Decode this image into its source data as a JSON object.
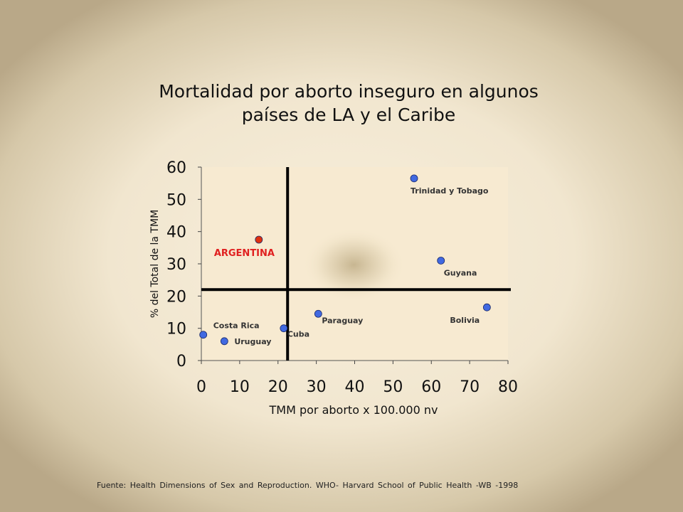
{
  "title_line1": "Mortalidad por aborto inseguro en algunos",
  "title_line2": "países de LA y el Caribe",
  "footer": "Fuente: Health Dimensions of Sex and Reproduction. WHO- Harvard School of Public Health -WB -1998",
  "colors": {
    "point": "#4169e1",
    "highlight": "#e03010",
    "highlight_label": "#e02020",
    "label": "#333333",
    "plot_bg": "#f7ead1"
  },
  "chart_data": {
    "type": "scatter",
    "title": "Mortalidad por aborto inseguro en algunos países de LA y el Caribe",
    "xlabel": "TMM por aborto x 100.000 nv",
    "ylabel": "% del Total de la TMM",
    "xlim": [
      0,
      80
    ],
    "ylim": [
      0,
      60
    ],
    "xticks": [
      0,
      10,
      20,
      30,
      40,
      50,
      60,
      70,
      80
    ],
    "yticks": [
      0,
      10,
      20,
      30,
      40,
      50,
      60
    ],
    "grid": false,
    "reference_lines": {
      "x": 22.5,
      "y": 22
    },
    "points": [
      {
        "label": "Trinidad y Tobago",
        "x": 55.5,
        "y": 56.5,
        "highlight": false
      },
      {
        "label": "Guyana",
        "x": 62.5,
        "y": 31,
        "highlight": false
      },
      {
        "label": "ARGENTINA",
        "x": 15,
        "y": 37.5,
        "highlight": true
      },
      {
        "label": "Bolivia",
        "x": 74.5,
        "y": 16.5,
        "highlight": false
      },
      {
        "label": "Paraguay",
        "x": 30.5,
        "y": 14.5,
        "highlight": false
      },
      {
        "label": "Costa Rica",
        "x": 0.5,
        "y": 8,
        "highlight": false
      },
      {
        "label": "Cuba",
        "x": 21.5,
        "y": 10,
        "highlight": false
      },
      {
        "label": "Uruguay",
        "x": 6,
        "y": 6,
        "highlight": false
      }
    ]
  }
}
